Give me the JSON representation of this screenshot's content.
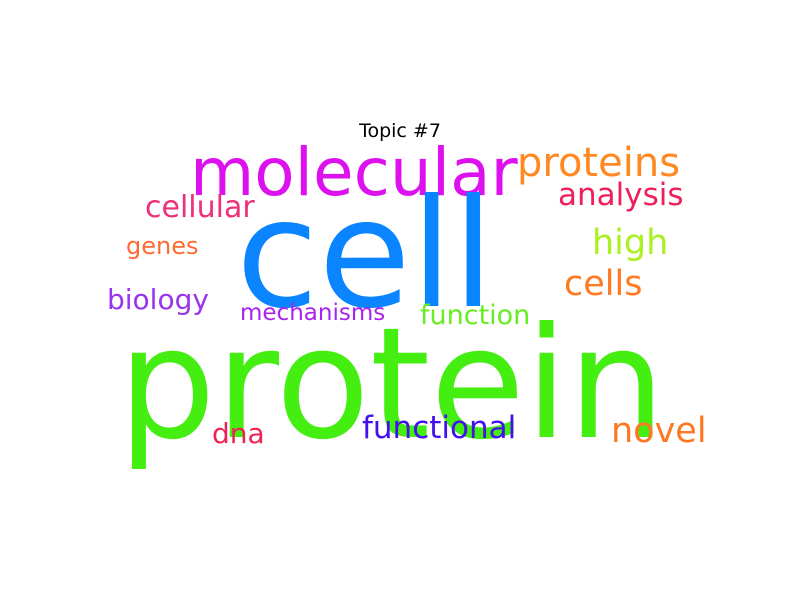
{
  "title": "Topic #7",
  "words": {
    "protein": {
      "text": "protein",
      "color": "#44ee11"
    },
    "cell": {
      "text": "cell",
      "color": "#0a84ff"
    },
    "molecular": {
      "text": "molecular",
      "color": "#dd11ee"
    },
    "proteins": {
      "text": "proteins",
      "color": "#ff8822"
    },
    "analysis": {
      "text": "analysis",
      "color": "#ee1f5a"
    },
    "cellular": {
      "text": "cellular",
      "color": "#ee2f7a"
    },
    "high": {
      "text": "high",
      "color": "#aaf022"
    },
    "genes": {
      "text": "genes",
      "color": "#ff6a33"
    },
    "cells": {
      "text": "cells",
      "color": "#ff7a22"
    },
    "biology": {
      "text": "biology",
      "color": "#9933ee"
    },
    "mechanisms": {
      "text": "mechanisms",
      "color": "#aa22ee"
    },
    "function": {
      "text": "function",
      "color": "#66ee22"
    },
    "dna": {
      "text": "dna",
      "color": "#ee2255"
    },
    "functional": {
      "text": "functional",
      "color": "#4411ee"
    },
    "novel": {
      "text": "novel",
      "color": "#ff7722"
    }
  }
}
